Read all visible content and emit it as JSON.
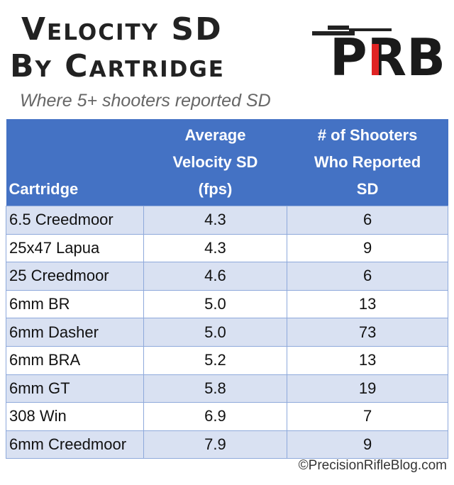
{
  "header": {
    "title_lines": [
      "Velocity SD",
      "By Cartridge"
    ],
    "logo": "PRB",
    "subtitle": "Where 5+ shooters reported SD"
  },
  "table": {
    "columns": [
      "Cartridge",
      "Average Velocity SD (fps)",
      "# of Shooters Who Reported SD"
    ],
    "rows": [
      [
        "6.5 Creedmoor",
        "4.3",
        "6"
      ],
      [
        "25x47 Lapua",
        "4.3",
        "9"
      ],
      [
        "25 Creedmoor",
        "4.6",
        "6"
      ],
      [
        "6mm BR",
        "5.0",
        "13"
      ],
      [
        "6mm Dasher",
        "5.0",
        "73"
      ],
      [
        "6mm BRA",
        "5.2",
        "13"
      ],
      [
        "6mm GT",
        "5.8",
        "19"
      ],
      [
        "308 Win",
        "6.9",
        "7"
      ],
      [
        "6mm Creedmoor",
        "7.9",
        "9"
      ]
    ]
  },
  "footer": {
    "copyright": "©PrecisionRifleBlog.com"
  }
}
